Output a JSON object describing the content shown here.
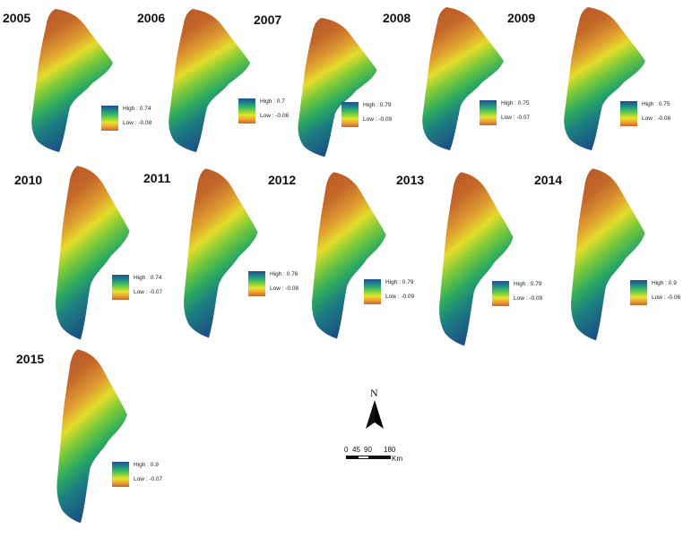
{
  "maps": [
    {
      "year": "2005",
      "high": "High : 0.74",
      "low": "Low : -0.08"
    },
    {
      "year": "2006",
      "high": "High : 0.7",
      "low": "Low : -0.08"
    },
    {
      "year": "2007",
      "high": "High : 0.79",
      "low": "Low : -0.09"
    },
    {
      "year": "2008",
      "high": "High : 0.75",
      "low": "Low : -0.07"
    },
    {
      "year": "2009",
      "high": "High : 0.75",
      "low": "Low : -0.08"
    },
    {
      "year": "2010",
      "high": "High : 0.74",
      "low": "Low : -0.07"
    },
    {
      "year": "2011",
      "high": "High : 0.76",
      "low": "Low : -0.08"
    },
    {
      "year": "2012",
      "high": "High : 0.79",
      "low": "Low : -0.09"
    },
    {
      "year": "2013",
      "high": "High : 0.79",
      "low": "Low : -0.09"
    },
    {
      "year": "2014",
      "high": "High : 0.9",
      "low": "Low : -0.06"
    },
    {
      "year": "2015",
      "high": "High : 0.9",
      "low": "Low : -0.07"
    }
  ],
  "legend_colors": [
    "#1f4f8e",
    "#21808a",
    "#2fb36c",
    "#7fd13b",
    "#e7e52c",
    "#f0a630",
    "#c8642c"
  ],
  "north_arrow": {
    "label": "N"
  },
  "scale_bar": {
    "ticks": [
      "0",
      "45",
      "90",
      "180"
    ],
    "unit": "Km"
  }
}
